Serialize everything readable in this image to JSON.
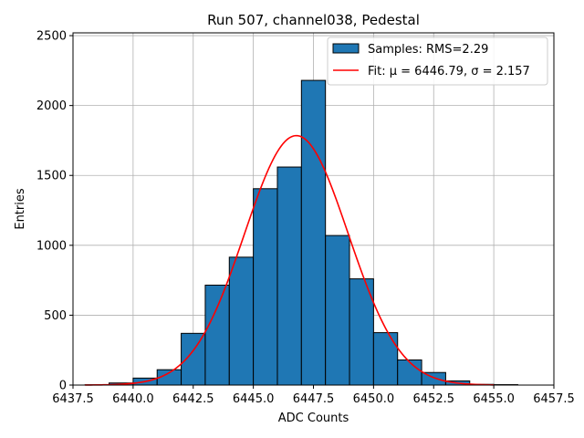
{
  "chart_data": {
    "type": "bar",
    "title": "Run 507, channel038, Pedestal",
    "xlabel": "ADC Counts",
    "ylabel": "Entries",
    "xlim": [
      6437.5,
      6457.5
    ],
    "ylim": [
      0,
      2520
    ],
    "xticks": [
      6437.5,
      6440.0,
      6442.5,
      6445.0,
      6447.5,
      6450.0,
      6452.5,
      6455.0,
      6457.5
    ],
    "xtick_labels": [
      "6437.5",
      "6440.0",
      "6442.5",
      "6445.0",
      "6447.5",
      "6450.0",
      "6452.5",
      "6455.0",
      "6457.5"
    ],
    "yticks": [
      0,
      500,
      1000,
      1500,
      2000,
      2500
    ],
    "ytick_labels": [
      "0",
      "500",
      "1000",
      "1500",
      "2000",
      "2500"
    ],
    "grid": true,
    "legend_position": "top-right",
    "histogram": {
      "name": "Samples: RMS=2.29",
      "color": "#1f77b4",
      "edge_color": "#000000",
      "bin_edges": [
        6438.0,
        6439.0,
        6440.0,
        6441.0,
        6442.0,
        6443.0,
        6444.0,
        6445.0,
        6446.0,
        6447.0,
        6448.0,
        6449.0,
        6450.0,
        6451.0,
        6452.0,
        6453.0,
        6454.0,
        6455.0,
        6456.0
      ],
      "counts": [
        2,
        15,
        50,
        110,
        370,
        715,
        915,
        1405,
        1560,
        2180,
        1070,
        760,
        375,
        180,
        90,
        30,
        5,
        3
      ]
    },
    "fit": {
      "name": "Fit: μ = 6446.79, σ = 2.157",
      "color": "#ff0000",
      "mu": 6446.79,
      "sigma": 2.157,
      "amplitude": 1785,
      "x_range": [
        6438.0,
        6455.0
      ]
    }
  }
}
